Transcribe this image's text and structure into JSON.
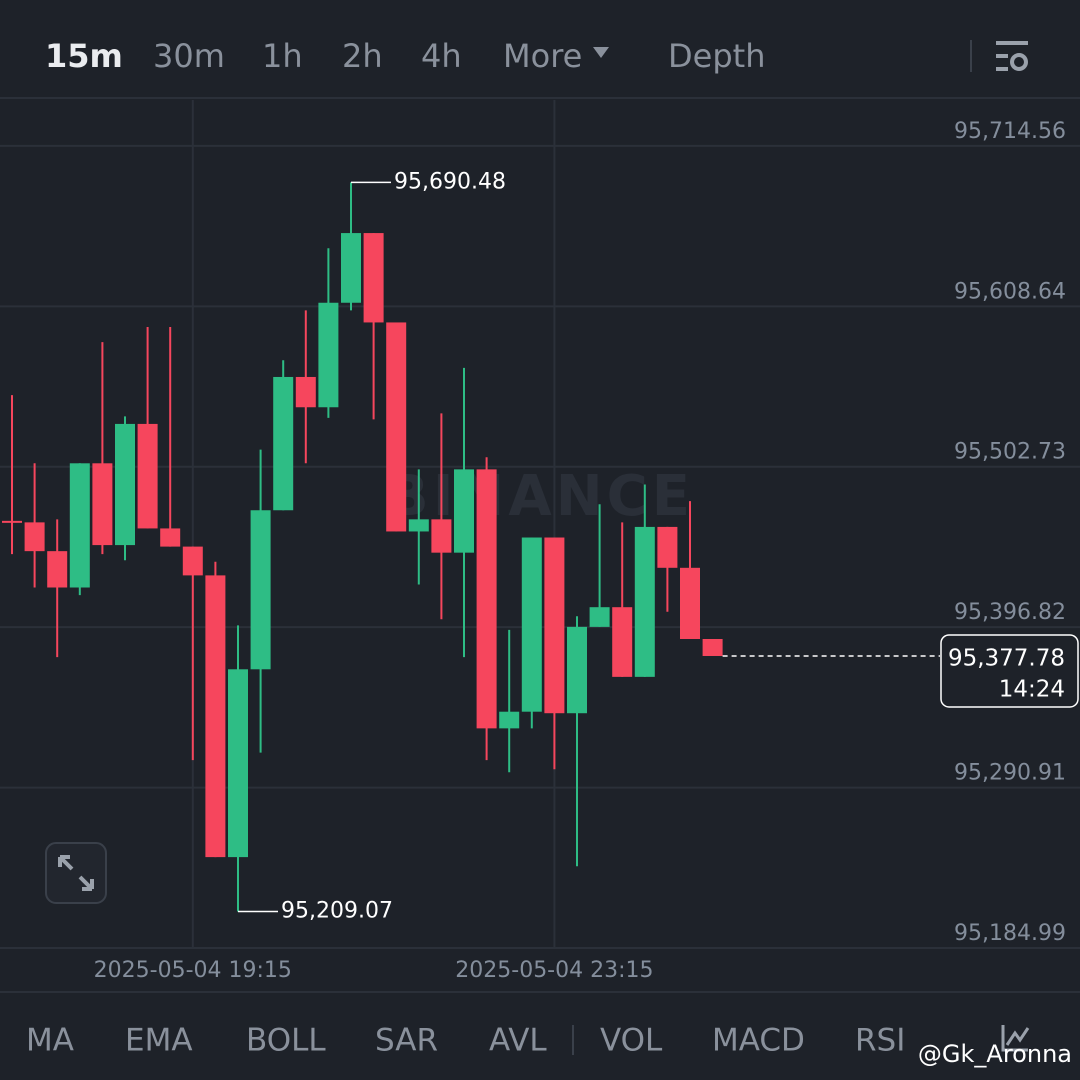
{
  "ui": {
    "tabs": [
      "15m",
      "30m",
      "1h",
      "2h",
      "4h",
      "More",
      "Depth"
    ],
    "indicators": [
      "MA",
      "EMA",
      "BOLL",
      "SAR",
      "AVL",
      "VOL",
      "MACD",
      "RSI"
    ],
    "credit": "@Gk_Aronna"
  },
  "chart_data": {
    "type": "candlestick",
    "watermark": "BINANCE",
    "x": [
      null,
      null,
      null,
      null,
      null,
      null,
      null,
      null,
      "2025-05-04 19:15",
      null,
      null,
      null,
      null,
      null,
      null,
      null,
      null,
      null,
      null,
      null,
      null,
      null,
      null,
      null,
      "2025-05-04 23:15",
      null,
      null,
      null,
      null,
      null,
      null,
      null
    ],
    "open": [
      95467,
      95466,
      95447,
      95423,
      95505,
      95451,
      95531,
      95462,
      95450,
      95431,
      95245,
      95369,
      95474,
      95562,
      95542,
      95611,
      95657,
      95598,
      95460,
      95468,
      95446,
      95501,
      95330,
      95341,
      95456,
      95340,
      95397,
      95410,
      95364,
      95463,
      95436,
      95389
    ],
    "high": [
      95550,
      95505,
      95468,
      95505,
      95585,
      95536,
      95595,
      95595,
      95450,
      95440,
      95398,
      95514,
      95573,
      95606,
      95647,
      95690.48,
      95657,
      95598,
      95501,
      95538,
      95568,
      95509,
      95395,
      95456,
      95456,
      95404,
      95478,
      95466,
      95491,
      95463,
      95480,
      95389
    ],
    "low": [
      95445,
      95423,
      95377,
      95418,
      95445,
      95441,
      95462,
      95450,
      95309,
      95245,
      95209.07,
      95314,
      95474,
      95505,
      95535,
      95606,
      95534,
      95460,
      95425,
      95402,
      95377,
      95309,
      95301,
      95330,
      95303,
      95239,
      95397,
      95364,
      95364,
      95407,
      95389,
      95377.78
    ],
    "close": [
      95466,
      95447,
      95423,
      95505,
      95451,
      95531,
      95462,
      95450,
      95431,
      95245,
      95369,
      95474,
      95562,
      95542,
      95611,
      95657,
      95598,
      95460,
      95468,
      95446,
      95501,
      95330,
      95341,
      95456,
      95340,
      95397,
      95410,
      95364,
      95463,
      95436,
      95389,
      95377.78
    ],
    "up_color": "#2ebd85",
    "down_color": "#f6465d",
    "high_label": "95,690.48",
    "low_label": "95,209.07",
    "last_price": {
      "value": 95377.78,
      "label": "95,377.78"
    },
    "countdown": "14:24",
    "ylim": [
      95184.99,
      95744.86
    ],
    "yticks": [
      {
        "value": 95184.99,
        "label": "95,184.99"
      },
      {
        "value": 95290.91,
        "label": "95,290.91"
      },
      {
        "value": 95396.82,
        "label": "95,396.82"
      },
      {
        "value": 95502.73,
        "label": "95,502.73"
      },
      {
        "value": 95608.64,
        "label": "95,608.64"
      },
      {
        "value": 95714.56,
        "label": "95,714.56"
      }
    ],
    "grid": true
  }
}
